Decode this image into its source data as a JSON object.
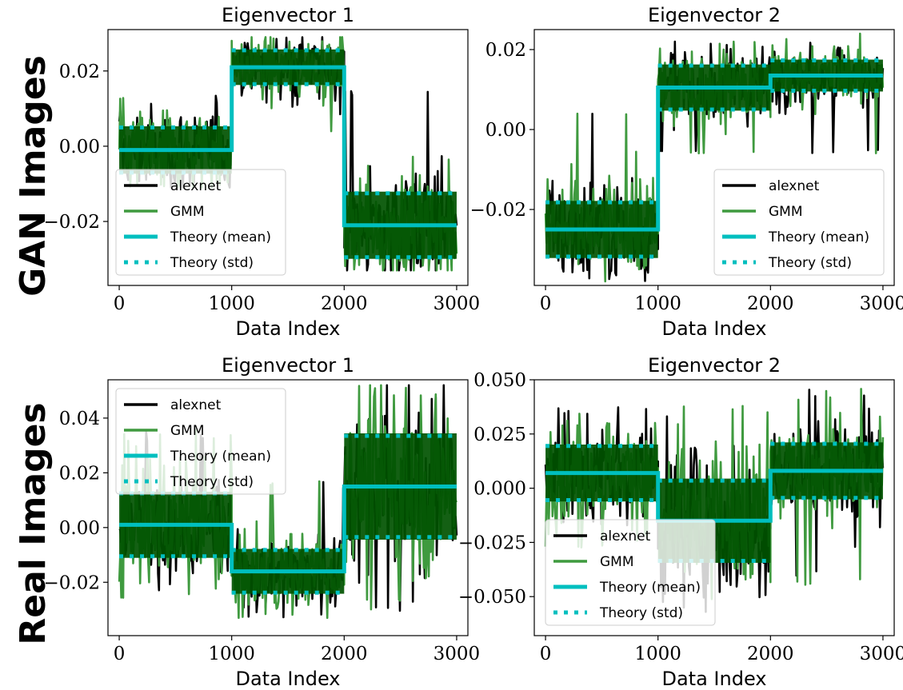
{
  "row_labels": [
    "GAN Images",
    "Real Images"
  ],
  "colors": {
    "alexnet": "#000000",
    "gmm": "#3f9a3f",
    "gmm_dense": "#005200",
    "theory": "#00bfbf"
  },
  "chart_data": [
    {
      "type": "line",
      "title": "Eigenvector 1",
      "row": "GAN Images",
      "xlabel": "Data Index",
      "xlim": [
        -100,
        3100
      ],
      "ylim": [
        -0.037,
        0.031
      ],
      "xticks": [
        0,
        1000,
        2000,
        3000
      ],
      "yticks": [
        -0.02,
        0.0,
        0.02
      ],
      "ytick_labels": [
        "−0.02",
        "0.00",
        "0.02"
      ],
      "legend_loc": "lower left",
      "series": [
        {
          "name": "alexnet",
          "kind": "noisy"
        },
        {
          "name": "GMM",
          "kind": "noisy"
        },
        {
          "name": "Theory (mean)",
          "kind": "mean"
        },
        {
          "name": "Theory (std)",
          "kind": "std"
        }
      ],
      "segments": [
        {
          "x": [
            0,
            1000
          ],
          "mean": -0.001,
          "std": 0.006,
          "min": -0.011,
          "max": 0.014
        },
        {
          "x": [
            1000,
            2000
          ],
          "mean": 0.021,
          "std": 0.0045,
          "min": 0.004,
          "max": 0.029
        },
        {
          "x": [
            2000,
            3000
          ],
          "mean": -0.021,
          "std": 0.0085,
          "min": -0.033,
          "max": 0.015
        }
      ]
    },
    {
      "type": "line",
      "title": "Eigenvector 2",
      "row": "GAN Images",
      "xlabel": "Data Index",
      "xlim": [
        -100,
        3100
      ],
      "ylim": [
        -0.039,
        0.025
      ],
      "xticks": [
        0,
        1000,
        2000,
        3000
      ],
      "yticks": [
        -0.04,
        -0.02,
        0.0,
        0.02
      ],
      "ytick_labels": [
        "−0.04",
        "−0.02",
        "0.00",
        "0.02"
      ],
      "legend_loc": "lower right",
      "series": [
        {
          "name": "alexnet",
          "kind": "noisy"
        },
        {
          "name": "GMM",
          "kind": "noisy"
        },
        {
          "name": "Theory (mean)",
          "kind": "mean"
        },
        {
          "name": "Theory (std)",
          "kind": "std"
        }
      ],
      "segments": [
        {
          "x": [
            0,
            1000
          ],
          "mean": -0.025,
          "std": 0.0068,
          "min": -0.038,
          "max": 0.004
        },
        {
          "x": [
            1000,
            2000
          ],
          "mean": 0.0105,
          "std": 0.0055,
          "min": -0.006,
          "max": 0.022
        },
        {
          "x": [
            2000,
            3000
          ],
          "mean": 0.0135,
          "std": 0.0038,
          "min": -0.006,
          "max": 0.024
        }
      ]
    },
    {
      "type": "line",
      "title": "Eigenvector 1",
      "row": "Real Images",
      "xlabel": "Data Index",
      "xlim": [
        -100,
        3100
      ],
      "ylim": [
        -0.0395,
        0.054
      ],
      "xticks": [
        0,
        1000,
        2000,
        3000
      ],
      "yticks": [
        -0.02,
        0.0,
        0.02,
        0.04
      ],
      "ytick_labels": [
        "−0.02",
        "0.00",
        "0.02",
        "0.04"
      ],
      "legend_loc": "upper left",
      "series": [
        {
          "name": "alexnet",
          "kind": "noisy"
        },
        {
          "name": "GMM",
          "kind": "noisy"
        },
        {
          "name": "Theory (mean)",
          "kind": "mean"
        },
        {
          "name": "Theory (std)",
          "kind": "std"
        }
      ],
      "segments": [
        {
          "x": [
            0,
            1000
          ],
          "mean": 0.001,
          "std": 0.0115,
          "min": -0.026,
          "max": 0.036
        },
        {
          "x": [
            1000,
            2000
          ],
          "mean": -0.016,
          "std": 0.0078,
          "min": -0.033,
          "max": 0.017
        },
        {
          "x": [
            2000,
            3000
          ],
          "mean": 0.015,
          "std": 0.0185,
          "min": -0.031,
          "max": 0.052
        }
      ]
    },
    {
      "type": "line",
      "title": "Eigenvector 2",
      "row": "Real Images",
      "xlabel": "Data Index",
      "xlim": [
        -100,
        3100
      ],
      "ylim": [
        -0.068,
        0.05
      ],
      "xticks": [
        0,
        1000,
        2000,
        3000
      ],
      "yticks": [
        -0.05,
        -0.025,
        0.0,
        0.025,
        0.05
      ],
      "ytick_labels": [
        "−0.050",
        "−0.025",
        "0.000",
        "0.025",
        "0.050"
      ],
      "legend_loc": "lower left",
      "series": [
        {
          "name": "alexnet",
          "kind": "noisy"
        },
        {
          "name": "GMM",
          "kind": "noisy"
        },
        {
          "name": "Theory (mean)",
          "kind": "mean"
        },
        {
          "name": "Theory (std)",
          "kind": "std"
        }
      ],
      "segments": [
        {
          "x": [
            0,
            1000
          ],
          "mean": 0.007,
          "std": 0.0125,
          "min": -0.028,
          "max": 0.038
        },
        {
          "x": [
            1000,
            2000
          ],
          "mean": -0.015,
          "std": 0.0185,
          "min": -0.057,
          "max": 0.038
        },
        {
          "x": [
            2000,
            3000
          ],
          "mean": 0.008,
          "std": 0.0125,
          "min": -0.045,
          "max": 0.046
        }
      ]
    }
  ]
}
